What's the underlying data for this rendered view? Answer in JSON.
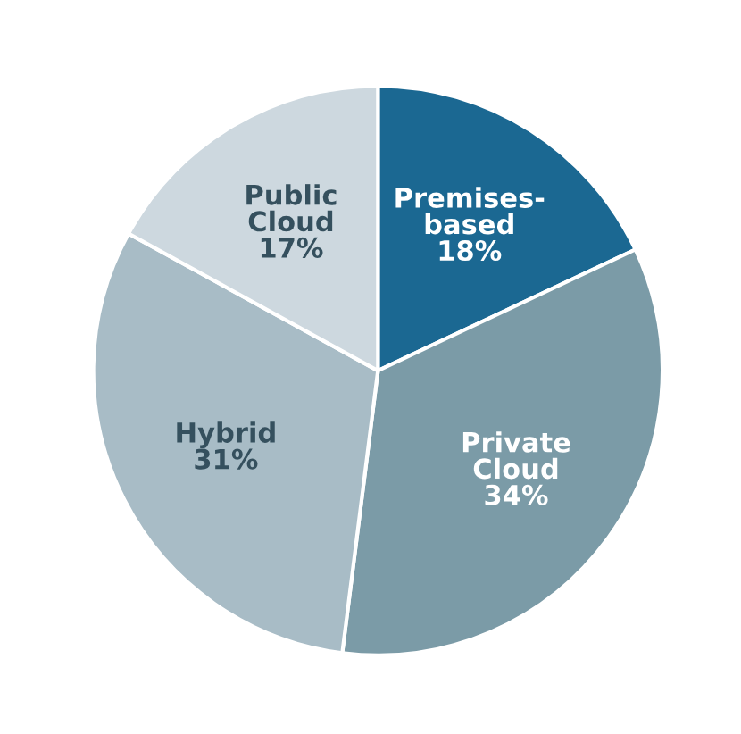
{
  "chart_data": {
    "type": "pie",
    "categories": [
      "Premises-\nbased",
      "Private\nCloud",
      "Hybrid",
      "Public\nCloud"
    ],
    "values": [
      18,
      34,
      31,
      17
    ],
    "colors": [
      "#1b6892",
      "#7b9ba7",
      "#a8bcc6",
      "#cdd8df"
    ],
    "value_labels": [
      "18%",
      "34%",
      "31%",
      "17%"
    ]
  }
}
